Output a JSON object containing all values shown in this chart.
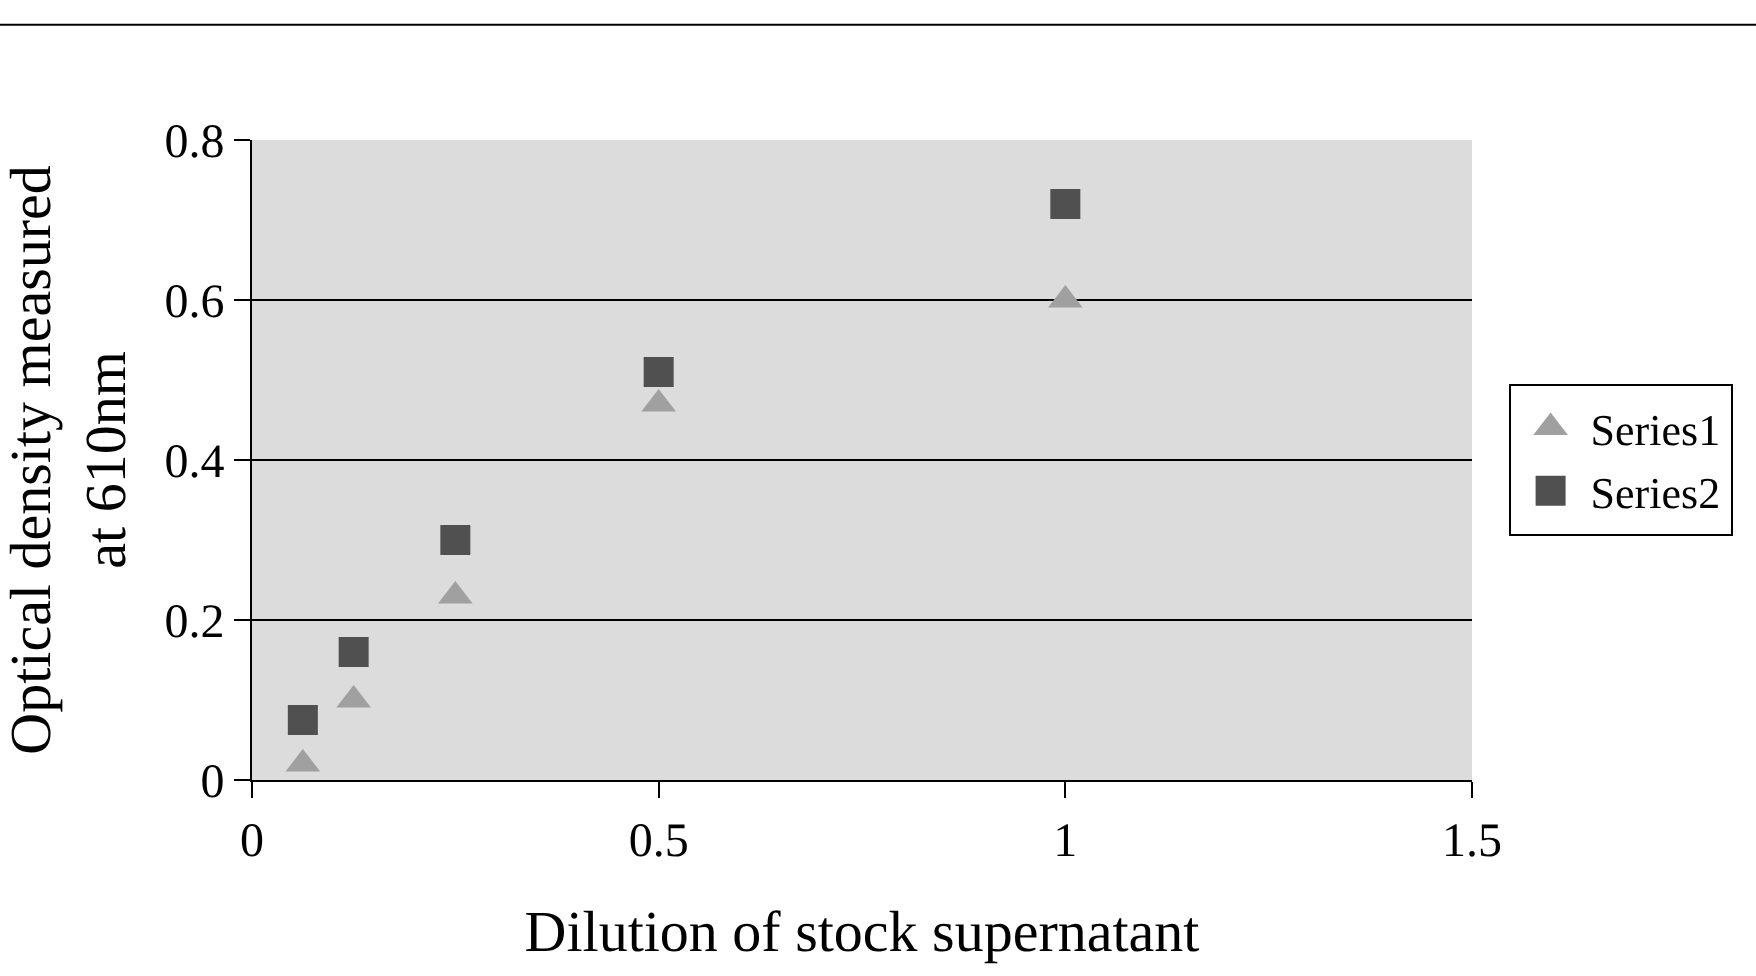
{
  "chart_data": {
    "type": "scatter",
    "xlabel": "Dilution of stock supernatant",
    "ylabel": "Optical density measured\nat 610nm",
    "x": [
      0.0625,
      0.125,
      0.25,
      0.5,
      1
    ],
    "series": [
      {
        "name": "Series1",
        "color": "#a0a0a0",
        "marker": "triangle",
        "values": [
          0.02,
          0.1,
          0.23,
          0.47,
          0.6
        ]
      },
      {
        "name": "Series2",
        "color": "#505050",
        "marker": "square",
        "values": [
          0.075,
          0.16,
          0.3,
          0.51,
          0.72
        ]
      }
    ],
    "xlim": [
      0,
      1.5
    ],
    "xticks": [
      0,
      0.5,
      1,
      1.5
    ],
    "ylim": [
      0,
      0.8
    ],
    "yticks": [
      0,
      0.2,
      0.4,
      0.6,
      0.8
    ],
    "grid": "y",
    "legend": "right"
  }
}
